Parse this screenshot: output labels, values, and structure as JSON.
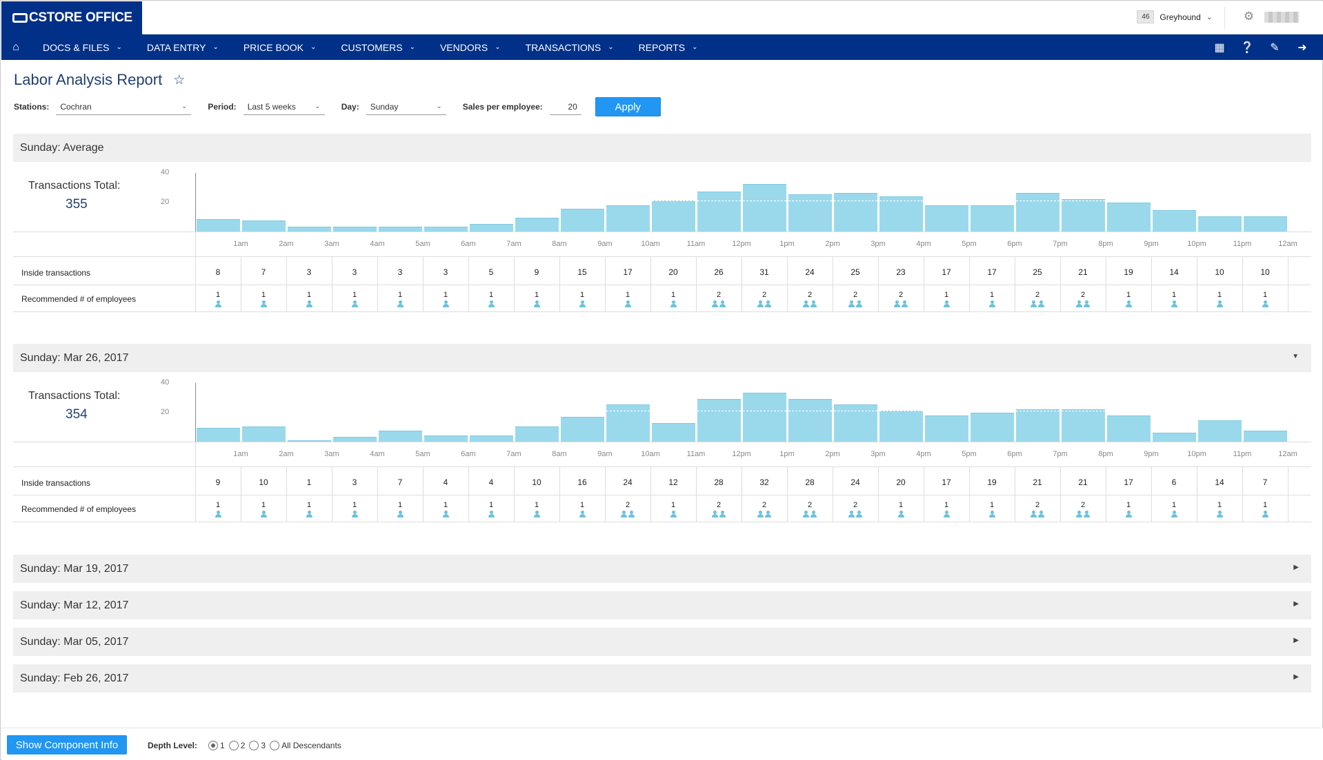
{
  "app": {
    "logo_text": "CSTORE OFFICE",
    "account_count": "46",
    "account_name": "Greyhound"
  },
  "nav": {
    "items": [
      "DOCS & FILES",
      "DATA ENTRY",
      "PRICE BOOK",
      "CUSTOMERS",
      "VENDORS",
      "TRANSACTIONS",
      "REPORTS"
    ]
  },
  "page": {
    "title": "Labor Analysis Report"
  },
  "filters": {
    "stations_label": "Stations:",
    "stations_value": "Cochran",
    "period_label": "Period:",
    "period_value": "Last 5 weeks",
    "day_label": "Day:",
    "day_value": "Sunday",
    "sales_label": "Sales per employee:",
    "sales_value": "20",
    "apply_label": "Apply"
  },
  "labels": {
    "transactions_total": "Transactions Total:",
    "inside_transactions": "Inside transactions",
    "recommended_employees": "Recommended # of employees"
  },
  "hours": [
    "1am",
    "2am",
    "3am",
    "4am",
    "5am",
    "6am",
    "7am",
    "8am",
    "9am",
    "10am",
    "11am",
    "12pm",
    "1pm",
    "2pm",
    "3pm",
    "4pm",
    "5pm",
    "6pm",
    "7pm",
    "8pm",
    "9pm",
    "10pm",
    "11pm",
    "12am"
  ],
  "chart_data": [
    {
      "type": "bar",
      "title": "Sunday: Average",
      "total": "355",
      "ylim": [
        0,
        40
      ],
      "yticks": [
        20,
        40
      ],
      "values": [
        8,
        7,
        3,
        3,
        3,
        3,
        5,
        9,
        15,
        17,
        20,
        26,
        31,
        24,
        25,
        23,
        17,
        17,
        25,
        21,
        19,
        14,
        10,
        10
      ],
      "employees": [
        1,
        1,
        1,
        1,
        1,
        1,
        1,
        1,
        1,
        1,
        1,
        2,
        2,
        2,
        2,
        2,
        1,
        1,
        2,
        2,
        1,
        1,
        1,
        1
      ]
    },
    {
      "type": "bar",
      "title": "Sunday: Mar 26, 2017",
      "total": "354",
      "ylim": [
        0,
        40
      ],
      "yticks": [
        20,
        40
      ],
      "values": [
        9,
        10,
        1,
        3,
        7,
        4,
        4,
        10,
        16,
        24,
        12,
        28,
        32,
        28,
        24,
        20,
        17,
        19,
        21,
        21,
        17,
        6,
        14,
        7
      ],
      "employees": [
        1,
        1,
        1,
        1,
        1,
        1,
        1,
        1,
        1,
        2,
        1,
        2,
        2,
        2,
        2,
        1,
        1,
        1,
        2,
        2,
        1,
        1,
        1,
        1
      ]
    }
  ],
  "collapsed_sections": [
    "Sunday: Mar 19, 2017",
    "Sunday: Mar 12, 2017",
    "Sunday: Mar 05, 2017",
    "Sunday: Feb 26, 2017"
  ],
  "footer": {
    "show_info_label": "Show Component Info",
    "depth_label": "Depth Level:",
    "depth_options": [
      "1",
      "2",
      "3",
      "All Descendants"
    ],
    "depth_selected": "1"
  }
}
